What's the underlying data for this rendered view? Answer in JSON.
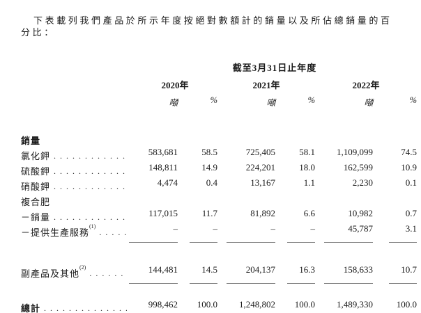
{
  "intro": "下表載列我們產品於所示年度按絕對數額計的銷量以及所佔總銷量的百分比：",
  "colors": {
    "background": "#ffffff",
    "text": "#1a1a1a",
    "rule_single": "#7f7f7f",
    "rule_double": "#1a1a1a"
  },
  "table": {
    "period_header": "截至3月31日止年度",
    "year_headers": [
      "2020年",
      "2021年",
      "2022年"
    ],
    "unit_ton": "噸",
    "unit_pct": "%",
    "rows": [
      {
        "id": "sales-volume-header",
        "label": "銷量",
        "bold": true,
        "dots": false,
        "values": []
      },
      {
        "id": "potassium-chloride",
        "label": "氯化鉀",
        "dots": true,
        "values": [
          "583,681",
          "58.5",
          "725,405",
          "58.1",
          "1,109,099",
          "74.5"
        ]
      },
      {
        "id": "potassium-sulfate",
        "label": "硫酸鉀",
        "dots": true,
        "values": [
          "148,811",
          "14.9",
          "224,201",
          "18.0",
          "162,599",
          "10.9"
        ]
      },
      {
        "id": "potassium-nitrate",
        "label": "硝酸鉀",
        "dots": true,
        "values": [
          "4,474",
          "0.4",
          "13,167",
          "1.1",
          "2,230",
          "0.1"
        ]
      },
      {
        "id": "compound-fertilizer-header",
        "label": "複合肥",
        "dots": false,
        "values": []
      },
      {
        "id": "compound-fertilizer-sales",
        "label": "－銷量",
        "dots": true,
        "values": [
          "117,015",
          "11.7",
          "81,892",
          "6.6",
          "10,982",
          "0.7"
        ]
      },
      {
        "id": "compound-fertilizer-production-services",
        "label": "－提供生產服務",
        "sup": "(1)",
        "dots": true,
        "rule": "single",
        "values": [
          "–",
          "–",
          "–",
          "–",
          "45,787",
          "3.1"
        ]
      },
      {
        "id": "byproducts-and-others",
        "label": "副產品及其他",
        "sup": "(2)",
        "dots": true,
        "rule": "single",
        "values": [
          "144,481",
          "14.5",
          "204,137",
          "16.3",
          "158,633",
          "10.7"
        ]
      },
      {
        "id": "total",
        "label": "總計",
        "bold": true,
        "dots": true,
        "rule": "double",
        "values": [
          "998,462",
          "100.0",
          "1,248,802",
          "100.0",
          "1,489,330",
          "100.0"
        ]
      }
    ]
  }
}
